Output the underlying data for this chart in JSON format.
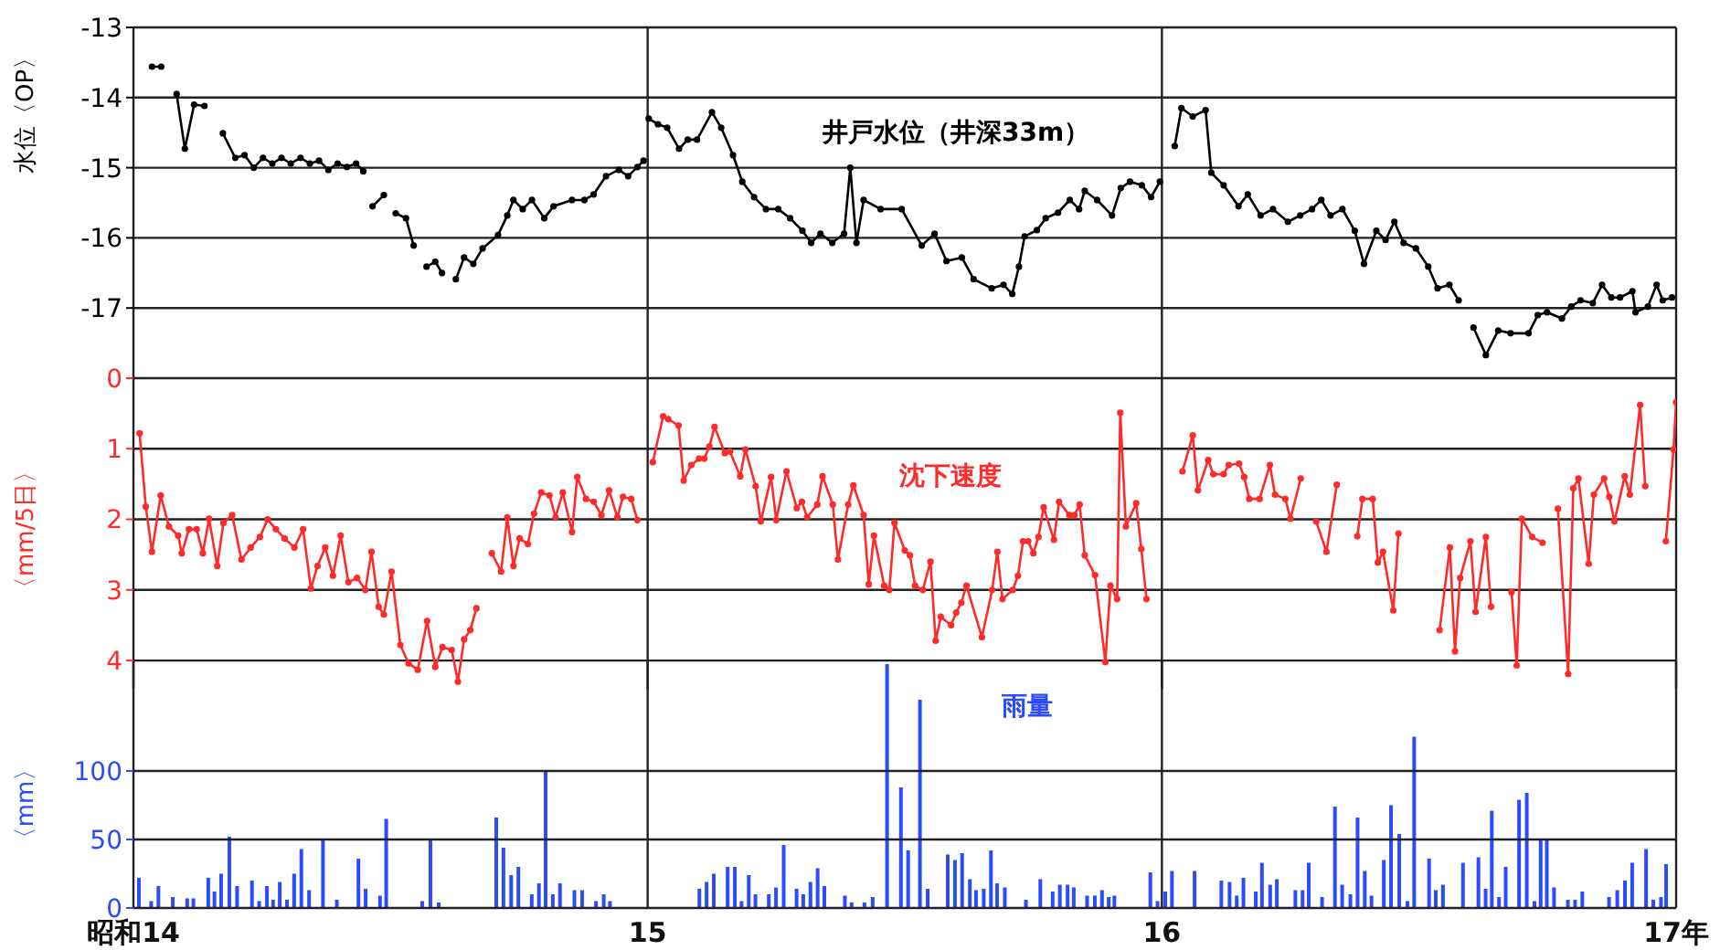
{
  "chart_data": [
    {
      "type": "line",
      "ylabel": "水位〈OP〉",
      "marker": "circle",
      "grid": true,
      "tick_labels": "y",
      "xlim": [
        14,
        17
      ],
      "xticks": [
        {
          "value": 14,
          "label": null
        },
        {
          "value": 15,
          "label": null
        },
        {
          "value": 16,
          "label": null
        },
        {
          "value": 17,
          "label": null
        }
      ],
      "ylim": [
        -18,
        -13
      ],
      "yticks": [
        -13,
        -14,
        -15,
        -16,
        -17
      ],
      "series": [
        {
          "name": "井戸水位（井深33m）",
          "color": "#000000",
          "x": [
            14.036,
            14.054,
            14.07,
            14.084,
            14.1,
            14.118,
            14.138,
            14.155,
            14.174,
            14.198,
            14.216,
            14.234,
            14.252,
            14.27,
            14.288,
            14.306,
            14.325,
            14.343,
            14.361,
            14.379,
            14.397,
            14.415,
            14.433,
            14.447,
            14.456,
            14.465,
            14.487,
            14.498,
            14.51,
            14.53,
            14.545,
            14.558,
            14.57,
            14.587,
            14.6,
            14.614,
            14.627,
            14.643,
            14.661,
            14.679,
            14.709,
            14.727,
            14.739,
            14.757,
            14.775,
            14.799,
            14.817,
            14.853,
            14.877,
            14.895,
            14.919,
            14.944,
            14.962,
            14.98,
            14.992,
            14.997,
            15.002,
            15.02,
            15.038,
            15.061,
            15.078,
            15.096,
            15.125,
            15.143,
            15.166,
            15.184,
            15.207,
            15.23,
            15.254,
            15.277,
            15.301,
            15.318,
            15.336,
            15.359,
            15.382,
            15.394,
            15.406,
            15.42,
            15.453,
            15.494,
            15.533,
            15.558,
            15.581,
            15.611,
            15.634,
            15.669,
            15.692,
            15.709,
            15.722,
            15.733,
            15.757,
            15.774,
            15.798,
            15.821,
            15.839,
            15.85,
            15.874,
            15.903,
            15.92,
            15.938,
            15.961,
            15.979,
            15.996,
            16.01,
            16.025,
            16.038,
            16.06,
            16.085,
            16.096,
            16.12,
            16.149,
            16.167,
            16.192,
            16.216,
            16.245,
            16.269,
            16.292,
            16.31,
            16.328,
            16.351,
            16.375,
            16.393,
            16.417,
            16.435,
            16.452,
            16.47,
            16.494,
            16.518,
            16.536,
            16.559,
            16.577,
            16.59,
            16.606,
            16.63,
            16.654,
            16.678,
            16.713,
            16.731,
            16.749,
            16.778,
            16.796,
            16.814,
            16.838,
            16.856,
            16.874,
            16.891,
            16.915,
            16.921,
            16.945,
            16.962,
            16.974,
            16.992
          ],
          "values": [
            -13.56,
            -13.56,
            null,
            -13.95,
            -14.73,
            -14.1,
            -14.12,
            null,
            -14.51,
            -14.86,
            -14.82,
            -15.0,
            -14.86,
            -14.94,
            -14.86,
            -14.94,
            -14.86,
            -14.94,
            -14.9,
            -15.03,
            -14.94,
            -14.99,
            -14.94,
            -15.05,
            null,
            -15.55,
            -15.39,
            null,
            -15.65,
            -15.72,
            -16.11,
            null,
            -16.41,
            -16.34,
            -16.5,
            null,
            -16.59,
            -16.28,
            -16.37,
            -16.15,
            -15.96,
            -15.68,
            -15.46,
            -15.59,
            -15.46,
            -15.72,
            -15.55,
            -15.46,
            -15.46,
            -15.38,
            -15.12,
            -15.03,
            -15.12,
            -14.99,
            -14.9,
            null,
            -14.3,
            -14.38,
            -14.43,
            -14.73,
            -14.6,
            -14.6,
            -14.21,
            -14.43,
            -14.82,
            -15.2,
            -15.42,
            -15.59,
            -15.59,
            -15.72,
            -15.9,
            -16.07,
            -15.94,
            -16.07,
            -15.94,
            -15.0,
            -16.07,
            -15.46,
            -15.59,
            -15.59,
            -16.11,
            -15.94,
            -16.33,
            -16.28,
            -16.59,
            -16.72,
            -16.67,
            -16.8,
            -16.41,
            -15.98,
            -15.89,
            -15.72,
            -15.64,
            -15.46,
            -15.59,
            -15.33,
            -15.46,
            -15.68,
            -15.29,
            -15.2,
            -15.25,
            -15.42,
            -15.2,
            null,
            -14.69,
            -14.15,
            -14.27,
            -14.18,
            -15.07,
            -15.25,
            -15.55,
            -15.38,
            -15.68,
            -15.59,
            -15.77,
            -15.68,
            -15.59,
            -15.46,
            -15.68,
            -15.59,
            -15.9,
            -16.37,
            -15.9,
            -16.03,
            -15.77,
            -16.07,
            -16.15,
            -16.41,
            -16.72,
            -16.67,
            -16.89,
            null,
            -17.28,
            -17.67,
            -17.32,
            -17.36,
            -17.36,
            -17.1,
            -17.06,
            -17.15,
            -16.98,
            -16.89,
            -16.93,
            -16.67,
            -16.85,
            -16.85,
            -16.76,
            -17.06,
            -16.98,
            -16.67,
            -16.89,
            -16.85
          ]
        }
      ]
    },
    {
      "type": "line",
      "ylabel": "〈mm/5日〉",
      "marker": "circle",
      "grid": true,
      "tick_labels": "y",
      "xlim": [
        14,
        17
      ],
      "xticks": [
        {
          "value": 14,
          "label": null
        },
        {
          "value": 15,
          "label": null
        },
        {
          "value": 16,
          "label": null
        },
        {
          "value": 17,
          "label": null
        }
      ],
      "ylim": [
        4.4,
        0
      ],
      "yticks": [
        0,
        1,
        2,
        3,
        4
      ],
      "series": [
        {
          "name": "沈下速度",
          "color": "#ff2a2a",
          "x": [
            14.012,
            14.024,
            14.036,
            14.053,
            14.069,
            14.087,
            14.094,
            14.108,
            14.123,
            14.135,
            14.147,
            14.163,
            14.175,
            14.192,
            14.21,
            14.228,
            14.246,
            14.261,
            14.277,
            14.294,
            14.313,
            14.33,
            14.345,
            14.358,
            14.373,
            14.388,
            14.403,
            14.418,
            14.435,
            14.451,
            14.463,
            14.477,
            14.487,
            14.502,
            14.519,
            14.535,
            14.553,
            14.571,
            14.587,
            14.601,
            14.619,
            14.631,
            14.643,
            14.655,
            14.667,
            14.68,
            14.697,
            14.715,
            14.727,
            14.739,
            14.751,
            14.767,
            14.779,
            14.793,
            14.809,
            14.821,
            14.835,
            14.853,
            14.863,
            14.88,
            14.895,
            14.91,
            14.925,
            14.941,
            14.952,
            14.968,
            14.98,
            14.995,
            15.01,
            15.03,
            15.04,
            15.06,
            15.07,
            15.085,
            15.1,
            15.11,
            15.12,
            15.13,
            15.15,
            15.16,
            15.18,
            15.19,
            15.21,
            15.22,
            15.24,
            15.25,
            15.27,
            15.29,
            15.3,
            15.31,
            15.33,
            15.34,
            15.36,
            15.37,
            15.39,
            15.4,
            15.42,
            15.43,
            15.44,
            15.46,
            15.47,
            15.48,
            15.5,
            15.51,
            15.52,
            15.535,
            15.55,
            15.56,
            15.57,
            15.59,
            15.6,
            15.61,
            15.62,
            15.65,
            15.67,
            15.68,
            15.69,
            15.71,
            15.72,
            15.73,
            15.74,
            15.75,
            15.76,
            15.77,
            15.79,
            15.8,
            15.82,
            15.83,
            15.84,
            15.85,
            15.87,
            15.89,
            15.9,
            15.913,
            15.919,
            15.93,
            15.95,
            15.96,
            15.97,
            16.0,
            16.04,
            16.06,
            16.07,
            16.09,
            16.1,
            16.12,
            16.13,
            16.15,
            16.16,
            16.17,
            16.19,
            16.21,
            16.22,
            16.24,
            16.25,
            16.27,
            16.285,
            16.3,
            16.32,
            16.34,
            16.36,
            16.38,
            16.39,
            16.41,
            16.42,
            16.43,
            16.45,
            16.46,
            16.5,
            16.54,
            16.56,
            16.57,
            16.58,
            16.6,
            16.61,
            16.63,
            16.64,
            16.66,
            16.68,
            16.69,
            16.7,
            16.72,
            16.74,
            16.755,
            16.77,
            16.79,
            16.8,
            16.81,
            16.83,
            16.84,
            16.86,
            16.87,
            16.88,
            16.9,
            16.91,
            16.93,
            16.94,
            16.96,
            16.98,
            16.995,
            17.0
          ],
          "values": [
            0.78,
            1.82,
            2.46,
            1.66,
            2.1,
            2.23,
            2.48,
            2.14,
            2.14,
            2.48,
            1.99,
            2.66,
            2.05,
            1.94,
            2.57,
            2.4,
            2.25,
            2.0,
            2.14,
            2.27,
            2.4,
            2.14,
            2.98,
            2.66,
            2.4,
            2.8,
            2.23,
            2.89,
            2.83,
            3.0,
            2.46,
            3.24,
            3.35,
            2.74,
            3.78,
            4.04,
            4.13,
            3.44,
            4.09,
            3.81,
            3.85,
            4.3,
            3.7,
            3.57,
            3.26,
            null,
            2.48,
            2.74,
            1.97,
            2.66,
            2.27,
            2.35,
            1.92,
            1.62,
            1.66,
            1.97,
            1.62,
            2.18,
            1.4,
            1.71,
            1.75,
            1.94,
            1.59,
            1.97,
            1.68,
            1.71,
            2.01,
            null,
            1.19,
            0.54,
            0.58,
            0.67,
            1.45,
            1.23,
            1.14,
            1.14,
            0.97,
            0.69,
            1.06,
            1.04,
            1.39,
            1.01,
            1.53,
            2.03,
            1.4,
            2.01,
            1.32,
            1.84,
            1.75,
            1.97,
            1.79,
            1.39,
            1.79,
            2.57,
            1.79,
            1.52,
            1.94,
            2.92,
            2.23,
            2.94,
            3.0,
            2.05,
            2.44,
            2.51,
            2.94,
            3.0,
            2.6,
            3.72,
            3.38,
            3.5,
            3.32,
            3.18,
            2.94,
            3.67,
            3.0,
            2.46,
            3.13,
            3.0,
            2.8,
            2.31,
            2.31,
            2.48,
            2.25,
            1.83,
            2.29,
            1.75,
            1.94,
            1.94,
            1.79,
            2.51,
            2.79,
            4.02,
            2.94,
            3.13,
            0.49,
            2.1,
            1.77,
            2.42,
            3.13,
            null,
            1.32,
            0.81,
            1.59,
            1.16,
            1.36,
            1.36,
            1.23,
            1.21,
            1.4,
            1.71,
            1.71,
            1.23,
            1.65,
            1.71,
            1.99,
            1.42,
            null,
            2.03,
            2.46,
            1.51,
            null,
            2.24,
            1.71,
            1.71,
            2.61,
            2.46,
            3.29,
            2.2,
            null,
            3.57,
            2.4,
            3.87,
            2.83,
            2.31,
            3.31,
            2.25,
            3.24,
            null,
            3.03,
            4.07,
            1.99,
            2.25,
            2.33,
            null,
            1.85,
            4.19,
            1.56,
            1.42,
            2.63,
            1.65,
            1.42,
            1.68,
            2.03,
            1.39,
            1.65,
            0.38,
            1.53,
            null,
            2.31,
            1.01,
            0.34
          ]
        }
      ]
    },
    {
      "type": "bar",
      "ylabel": "〈mm〉",
      "grid": true,
      "xlim": [
        14,
        17
      ],
      "xticks": [
        {
          "value": 14,
          "label": "昭和14"
        },
        15,
        16,
        {
          "value": 17,
          "label": "17年"
        }
      ],
      "ylim": [
        0,
        180
      ],
      "yticks": [
        0,
        50,
        100
      ],
      "series": [
        {
          "name": "雨量",
          "color": "#2a4bff",
          "x": [
            14.012,
            14.036,
            14.05,
            14.078,
            14.106,
            14.118,
            14.147,
            14.159,
            14.172,
            14.188,
            14.203,
            14.232,
            14.246,
            14.261,
            14.273,
            14.286,
            14.3,
            14.314,
            14.328,
            14.343,
            14.37,
            14.397,
            14.439,
            14.453,
            14.481,
            14.493,
            14.563,
            14.579,
            14.595,
            14.707,
            14.721,
            14.736,
            14.75,
            14.776,
            14.79,
            14.803,
            14.817,
            14.831,
            14.859,
            14.874,
            14.901,
            14.916,
            14.928,
            15.102,
            15.116,
            15.13,
            15.157,
            15.171,
            15.184,
            15.198,
            15.211,
            15.237,
            15.251,
            15.266,
            15.291,
            15.304,
            15.318,
            15.332,
            15.345,
            15.385,
            15.398,
            15.423,
            15.439,
            15.467,
            15.494,
            15.508,
            15.531,
            15.546,
            15.585,
            15.599,
            15.613,
            15.628,
            15.64,
            15.655,
            15.669,
            15.681,
            15.696,
            15.737,
            15.765,
            15.789,
            15.803,
            15.818,
            15.83,
            15.856,
            15.871,
            15.885,
            15.898,
            15.909,
            15.979,
            15.993,
            16.008,
            16.021,
            16.065,
            16.117,
            16.133,
            16.147,
            16.16,
            16.184,
            16.196,
            16.212,
            16.225,
            16.261,
            16.275,
            16.287,
            16.313,
            16.338,
            16.352,
            16.368,
            16.382,
            16.396,
            16.409,
            16.433,
            16.447,
            16.463,
            16.479,
            16.492,
            16.521,
            16.534,
            16.548,
            16.587,
            16.617,
            16.631,
            16.643,
            16.657,
            16.67,
            16.696,
            16.711,
            16.726,
            16.738,
            16.75,
            16.764,
            16.791,
            16.805,
            16.819,
            16.871,
            16.887,
            16.902,
            16.916,
            16.943,
            16.957,
            16.972,
            16.982
          ],
          "values": [
            22,
            5,
            16,
            8,
            7,
            7,
            22,
            12,
            25,
            52,
            16,
            20,
            5,
            16,
            6,
            19,
            6,
            25,
            43,
            13,
            50,
            6,
            36,
            14,
            9,
            65,
            5,
            50,
            4,
            66,
            44,
            24,
            30,
            10,
            18,
            100,
            10,
            18,
            13,
            13,
            5,
            10,
            5,
            14,
            19,
            25,
            30,
            30,
            5,
            24,
            10,
            10,
            15,
            46,
            14,
            10,
            19,
            29,
            16,
            9,
            4,
            4,
            8,
            178,
            88,
            42,
            152,
            14,
            39,
            35,
            40,
            21,
            13,
            14,
            42,
            18,
            15,
            6,
            21,
            12,
            17,
            17,
            15,
            9,
            9,
            13,
            8,
            9,
            26,
            5,
            12,
            27,
            27,
            20,
            19,
            9,
            22,
            12,
            33,
            17,
            21,
            13,
            13,
            33,
            8,
            74,
            17,
            10,
            66,
            27,
            9,
            35,
            75,
            54,
            5,
            125,
            36,
            13,
            17,
            33,
            37,
            14,
            71,
            8,
            30,
            79,
            84,
            5,
            50,
            50,
            15,
            6,
            6,
            12,
            8,
            13,
            20,
            33,
            43,
            6,
            8,
            32
          ]
        }
      ]
    }
  ]
}
